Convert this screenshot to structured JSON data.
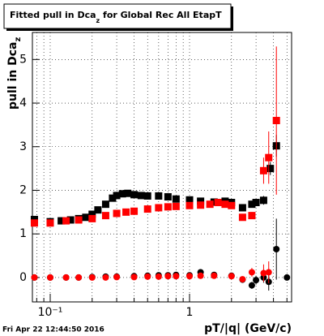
{
  "chart_data": {
    "type": "scatter",
    "title_parts": [
      "Fitted pull in Dca",
      "z",
      " for Global Rec All EtapT"
    ],
    "y_label_parts": [
      "pull in Dca",
      "z"
    ],
    "x_label": "pT/|q| (GeV/c)",
    "annotation": "Fri Apr 22 12:44:50 2016",
    "log_x": true,
    "grid": true,
    "xlim": [
      0.0745,
      5.4
    ],
    "ylim": [
      -0.56,
      5.62
    ],
    "xticks": [
      {
        "value": 0.1,
        "label": "10⁻¹"
      },
      1
    ],
    "xminorticks": [
      0.08,
      0.09,
      0.2,
      0.3,
      0.4,
      0.5,
      0.6,
      0.7,
      0.8,
      0.9,
      2,
      3,
      4,
      5
    ],
    "yticks": [
      0,
      1,
      2,
      3,
      4,
      5
    ],
    "series": [
      {
        "marker": "square",
        "color": "#000000",
        "x": [
          0.077,
          0.1,
          0.12,
          0.14,
          0.16,
          0.18,
          0.2,
          0.22,
          0.25,
          0.28,
          0.3,
          0.33,
          0.36,
          0.4,
          0.45,
          0.5,
          0.6,
          0.7,
          0.8,
          1.0,
          1.2,
          1.5,
          1.8,
          2.0,
          2.4,
          2.8,
          3.0,
          3.4,
          3.8,
          4.2
        ],
        "values": [
          1.33,
          1.28,
          1.3,
          1.32,
          1.35,
          1.38,
          1.45,
          1.55,
          1.68,
          1.82,
          1.88,
          1.92,
          1.93,
          1.9,
          1.88,
          1.87,
          1.87,
          1.85,
          1.8,
          1.78,
          1.75,
          1.73,
          1.75,
          1.72,
          1.6,
          1.68,
          1.72,
          1.77,
          2.5,
          3.02
        ],
        "errors": [
          null,
          null,
          null,
          null,
          null,
          null,
          null,
          null,
          null,
          null,
          null,
          null,
          null,
          null,
          null,
          null,
          null,
          null,
          null,
          null,
          null,
          null,
          null,
          null,
          0.05,
          0.06,
          0.08,
          0.1,
          0.15,
          0.25
        ]
      },
      {
        "marker": "square",
        "color": "#ff0000",
        "x": [
          0.077,
          0.1,
          0.13,
          0.16,
          0.2,
          0.25,
          0.3,
          0.35,
          0.4,
          0.5,
          0.6,
          0.7,
          0.8,
          1.0,
          1.2,
          1.4,
          1.6,
          1.8,
          2.0,
          2.4,
          2.8,
          3.4,
          3.7,
          4.2
        ],
        "values": [
          1.25,
          1.25,
          1.3,
          1.32,
          1.35,
          1.42,
          1.47,
          1.5,
          1.52,
          1.57,
          1.6,
          1.62,
          1.63,
          1.65,
          1.66,
          1.68,
          1.72,
          1.68,
          1.65,
          1.38,
          1.42,
          2.45,
          2.75,
          3.6
        ],
        "errors": [
          null,
          null,
          null,
          null,
          null,
          null,
          null,
          null,
          null,
          null,
          null,
          null,
          null,
          null,
          null,
          null,
          null,
          null,
          null,
          0.05,
          0.08,
          0.3,
          0.6,
          1.7
        ]
      },
      {
        "marker": "circle",
        "color": "#000000",
        "x": [
          0.077,
          0.1,
          0.13,
          0.16,
          0.2,
          0.25,
          0.3,
          0.4,
          0.5,
          0.6,
          0.7,
          0.8,
          1.0,
          1.2,
          1.5,
          2.0,
          2.4,
          2.8,
          3.0,
          3.4,
          3.7,
          4.2,
          5.0
        ],
        "values": [
          0.0,
          0.0,
          0.0,
          0.0,
          0.01,
          0.02,
          0.02,
          0.03,
          0.04,
          0.05,
          0.05,
          0.06,
          0.05,
          0.12,
          0.06,
          0.04,
          -0.05,
          -0.18,
          -0.06,
          0.0,
          -0.1,
          0.65,
          0.0
        ],
        "errors": [
          null,
          null,
          null,
          null,
          null,
          null,
          null,
          null,
          null,
          null,
          null,
          null,
          null,
          null,
          null,
          null,
          0.05,
          0.08,
          0.1,
          0.12,
          0.2,
          0.7,
          null
        ]
      },
      {
        "marker": "circle",
        "color": "#ff0000",
        "x": [
          0.077,
          0.1,
          0.13,
          0.16,
          0.2,
          0.25,
          0.3,
          0.4,
          0.5,
          0.6,
          0.7,
          0.8,
          1.0,
          1.2,
          1.5,
          2.0,
          2.4,
          2.8,
          3.4,
          3.7
        ],
        "values": [
          0.0,
          0.0,
          0.0,
          0.0,
          0.0,
          0.0,
          0.01,
          0.01,
          0.02,
          0.02,
          0.03,
          0.03,
          0.03,
          0.04,
          0.04,
          0.03,
          -0.04,
          0.12,
          0.1,
          0.12
        ],
        "errors": [
          null,
          null,
          null,
          null,
          null,
          null,
          null,
          null,
          null,
          null,
          null,
          null,
          null,
          null,
          null,
          null,
          0.05,
          0.1,
          0.2,
          0.25
        ]
      }
    ]
  }
}
